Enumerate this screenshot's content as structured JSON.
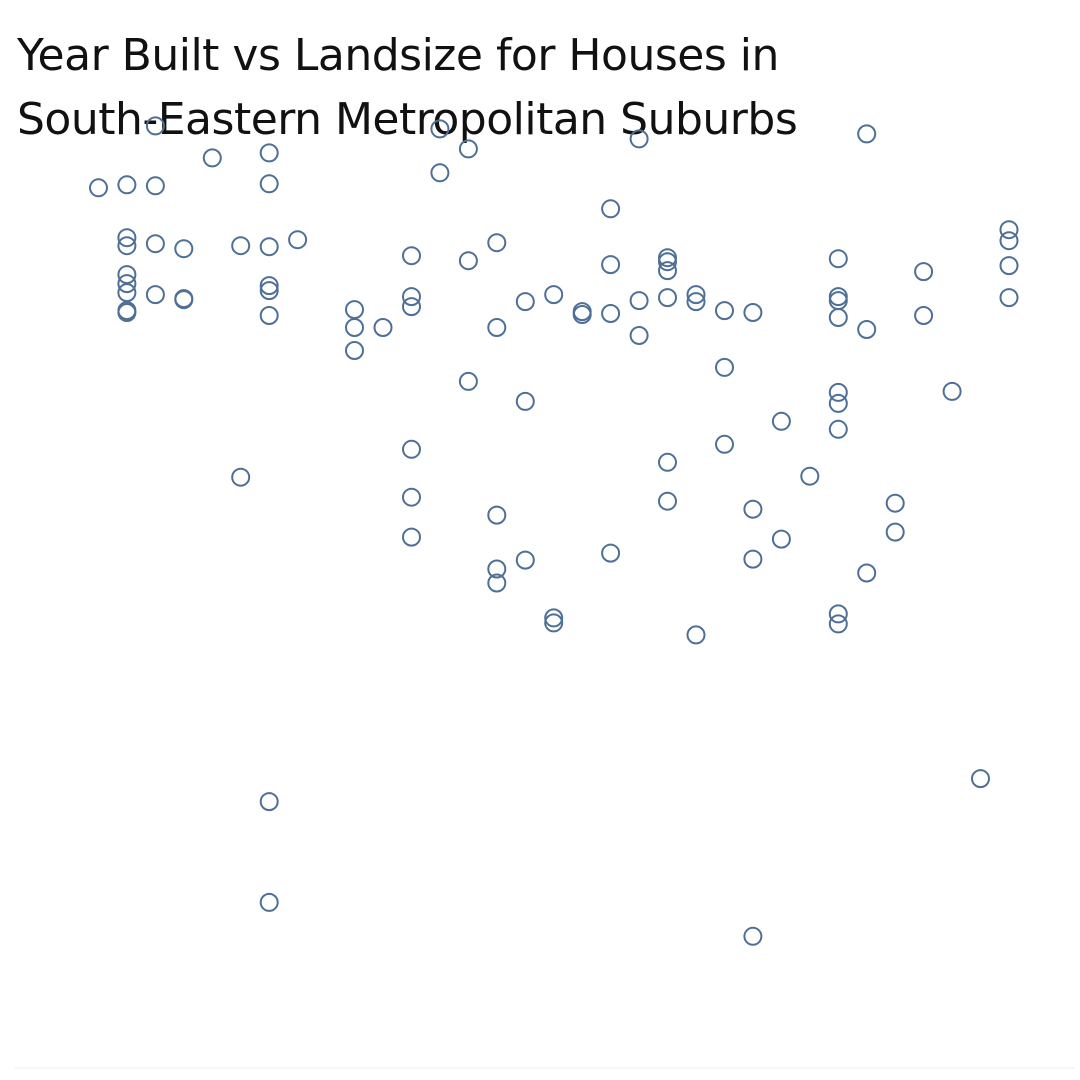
{
  "chart_data": {
    "type": "scatter",
    "title_lines": [
      "Year Built vs Landsize for Houses in",
      "South-Eastern Metropolitan Suburbs"
    ],
    "xlabel": "",
    "ylabel": "",
    "xlim": [
      1889,
      1922
    ],
    "ylim": [
      0,
      1000
    ],
    "grid": false,
    "marker": "hollow-circle",
    "color": "#4e6f96",
    "points": [
      [
        1890,
        900
      ],
      [
        1891,
        903
      ],
      [
        1891,
        850
      ],
      [
        1891,
        842
      ],
      [
        1891,
        813
      ],
      [
        1891,
        804
      ],
      [
        1891,
        795
      ],
      [
        1891,
        777
      ],
      [
        1891,
        775
      ],
      [
        1892,
        962
      ],
      [
        1892,
        902
      ],
      [
        1892,
        844
      ],
      [
        1892,
        793
      ],
      [
        1893,
        839
      ],
      [
        1893,
        789
      ],
      [
        1893,
        788
      ],
      [
        1894,
        930
      ],
      [
        1895,
        842
      ],
      [
        1895,
        610
      ],
      [
        1896,
        935
      ],
      [
        1896,
        904
      ],
      [
        1896,
        841
      ],
      [
        1896,
        802
      ],
      [
        1896,
        797
      ],
      [
        1896,
        772
      ],
      [
        1896,
        285
      ],
      [
        1896,
        184
      ],
      [
        1897,
        848
      ],
      [
        1899,
        778
      ],
      [
        1899,
        760
      ],
      [
        1899,
        737
      ],
      [
        1900,
        760
      ],
      [
        1901,
        832
      ],
      [
        1901,
        791
      ],
      [
        1901,
        781
      ],
      [
        1901,
        638
      ],
      [
        1901,
        590
      ],
      [
        1901,
        550
      ],
      [
        1902,
        959
      ],
      [
        1902,
        915
      ],
      [
        1903,
        939
      ],
      [
        1903,
        827
      ],
      [
        1903,
        706
      ],
      [
        1904,
        845
      ],
      [
        1904,
        760
      ],
      [
        1904,
        572
      ],
      [
        1904,
        518
      ],
      [
        1904,
        504
      ],
      [
        1905,
        786
      ],
      [
        1905,
        686
      ],
      [
        1905,
        527
      ],
      [
        1906,
        793
      ],
      [
        1906,
        469
      ],
      [
        1906,
        464
      ],
      [
        1907,
        776
      ],
      [
        1907,
        773
      ],
      [
        1908,
        879
      ],
      [
        1908,
        823
      ],
      [
        1908,
        774
      ],
      [
        1908,
        534
      ],
      [
        1909,
        949
      ],
      [
        1909,
        787
      ],
      [
        1909,
        752
      ],
      [
        1910,
        830
      ],
      [
        1910,
        826
      ],
      [
        1910,
        817
      ],
      [
        1910,
        790
      ],
      [
        1910,
        625
      ],
      [
        1910,
        586
      ],
      [
        1911,
        793
      ],
      [
        1911,
        786
      ],
      [
        1911,
        452
      ],
      [
        1912,
        720
      ],
      [
        1912,
        643
      ],
      [
        1912,
        777
      ],
      [
        1913,
        775
      ],
      [
        1913,
        578
      ],
      [
        1913,
        528
      ],
      [
        1913,
        150
      ],
      [
        1914,
        666
      ],
      [
        1914,
        548
      ],
      [
        1915,
        611
      ],
      [
        1916,
        829
      ],
      [
        1916,
        791
      ],
      [
        1916,
        787
      ],
      [
        1916,
        770
      ],
      [
        1916,
        695
      ],
      [
        1916,
        684
      ],
      [
        1916,
        658
      ],
      [
        1916,
        473
      ],
      [
        1916,
        463
      ],
      [
        1917,
        954
      ],
      [
        1917,
        758
      ],
      [
        1917,
        514
      ],
      [
        1918,
        584
      ],
      [
        1918,
        555
      ],
      [
        1919,
        816
      ],
      [
        1919,
        772
      ],
      [
        1920,
        696
      ],
      [
        1921,
        308
      ],
      [
        1922,
        858
      ],
      [
        1922,
        847
      ],
      [
        1922,
        822
      ],
      [
        1922,
        790
      ]
    ]
  }
}
